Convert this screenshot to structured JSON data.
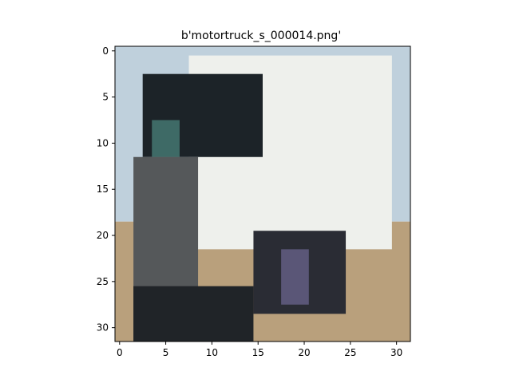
{
  "chart_data": {
    "type": "heatmap",
    "title": "b'motortruck_s_000014.png'",
    "xlabel": "",
    "ylabel": "",
    "image_width": 32,
    "image_height": 32,
    "xlim": [
      -0.5,
      31.5
    ],
    "ylim": [
      31.5,
      -0.5
    ],
    "x_ticks": [
      0,
      5,
      10,
      15,
      20,
      25,
      30
    ],
    "y_ticks": [
      0,
      5,
      10,
      15,
      20,
      25,
      30
    ],
    "grid": false,
    "legend": "none",
    "regions": [
      {
        "name": "sky",
        "color": "#bfd0dc",
        "x": [
          0,
          32
        ],
        "y": [
          0,
          19
        ]
      },
      {
        "name": "ground",
        "color": "#b9a07c",
        "x": [
          0,
          32
        ],
        "y": [
          19,
          32
        ]
      },
      {
        "name": "cab-white",
        "color": "#eef0ec",
        "x": [
          8,
          30
        ],
        "y": [
          1,
          22
        ]
      },
      {
        "name": "cab-dark",
        "color": "#1c2328",
        "x": [
          3,
          16
        ],
        "y": [
          3,
          12
        ]
      },
      {
        "name": "window-teal",
        "color": "#3e6a66",
        "x": [
          4,
          7
        ],
        "y": [
          8,
          12
        ]
      },
      {
        "name": "grille",
        "color": "#55585a",
        "x": [
          2,
          9
        ],
        "y": [
          12,
          32
        ]
      },
      {
        "name": "bumper-dark",
        "color": "#202428",
        "x": [
          2,
          15
        ],
        "y": [
          26,
          32
        ]
      },
      {
        "name": "wheel-dark",
        "color": "#2a2c34",
        "x": [
          15,
          25
        ],
        "y": [
          20,
          29
        ]
      },
      {
        "name": "wheel-purple",
        "color": "#5a5677",
        "x": [
          18,
          21
        ],
        "y": [
          22,
          28
        ]
      }
    ]
  }
}
